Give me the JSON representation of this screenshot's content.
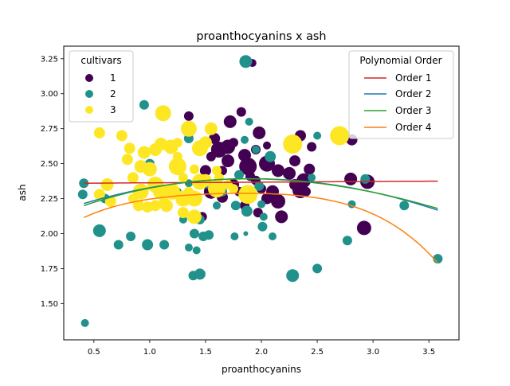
{
  "chart_data": {
    "type": "scatter",
    "title": "proanthocyanins x ash",
    "xlabel": "proanthocyanins",
    "ylabel": "ash",
    "xlim": [
      0.23,
      3.77
    ],
    "ylim": [
      1.24,
      3.34
    ],
    "xticks": [
      0.5,
      1.0,
      1.5,
      2.0,
      2.5,
      3.0,
      3.5
    ],
    "xtick_labels": [
      "0.5",
      "1.0",
      "1.5",
      "2.0",
      "2.5",
      "3.0",
      "3.5"
    ],
    "yticks": [
      1.5,
      1.75,
      2.0,
      2.25,
      2.5,
      2.75,
      3.0,
      3.25
    ],
    "ytick_labels": [
      "1.50",
      "1.75",
      "2.00",
      "2.25",
      "2.50",
      "2.75",
      "3.00",
      "3.25"
    ],
    "grid": false,
    "legends": [
      {
        "title": "cultivars",
        "placement": "top-left",
        "entries": [
          {
            "label": "1",
            "color": "#440154"
          },
          {
            "label": "2",
            "color": "#21918c"
          },
          {
            "label": "3",
            "color": "#fde725"
          }
        ]
      },
      {
        "title": "Polynomial Order",
        "placement": "top-right",
        "entries": [
          {
            "label": "Order 1",
            "color": "#d62728"
          },
          {
            "label": "Order 2",
            "color": "#1f77b4"
          },
          {
            "label": "Order 3",
            "color": "#2ca02c"
          },
          {
            "label": "Order 4",
            "color": "#ff7f0e"
          }
        ]
      }
    ],
    "series": [
      {
        "name": "1",
        "color": "#440154",
        "points": [
          [
            1.92,
            3.22,
            5
          ],
          [
            1.35,
            2.84,
            6
          ],
          [
            1.82,
            2.87,
            6
          ],
          [
            1.72,
            2.8,
            8
          ],
          [
            1.98,
            2.72,
            8
          ],
          [
            1.58,
            2.68,
            7
          ],
          [
            2.35,
            2.7,
            7
          ],
          [
            2.81,
            2.67,
            7
          ],
          [
            1.7,
            2.62,
            9
          ],
          [
            1.75,
            2.65,
            6
          ],
          [
            2.05,
            2.63,
            5
          ],
          [
            2.45,
            2.62,
            6
          ],
          [
            1.62,
            2.6,
            10
          ],
          [
            1.85,
            2.56,
            8
          ],
          [
            1.95,
            2.6,
            6
          ],
          [
            1.55,
            2.55,
            6
          ],
          [
            1.7,
            2.52,
            8
          ],
          [
            2.3,
            2.52,
            7
          ],
          [
            1.88,
            2.48,
            11
          ],
          [
            2.05,
            2.5,
            10
          ],
          [
            2.15,
            2.45,
            8
          ],
          [
            2.43,
            2.46,
            7
          ],
          [
            1.5,
            2.45,
            7
          ],
          [
            1.65,
            2.45,
            6
          ],
          [
            1.9,
            2.41,
            6
          ],
          [
            2.25,
            2.43,
            8
          ],
          [
            2.38,
            2.38,
            9
          ],
          [
            2.8,
            2.39,
            8
          ],
          [
            2.95,
            2.37,
            9
          ],
          [
            1.75,
            2.35,
            7
          ],
          [
            1.95,
            2.38,
            6
          ],
          [
            2.3,
            2.35,
            7
          ],
          [
            1.55,
            2.3,
            9
          ],
          [
            1.8,
            2.3,
            6
          ],
          [
            2.0,
            2.32,
            6
          ],
          [
            2.1,
            2.3,
            8
          ],
          [
            2.35,
            2.31,
            10
          ],
          [
            1.4,
            2.25,
            6
          ],
          [
            1.65,
            2.26,
            7
          ],
          [
            2.05,
            2.25,
            7
          ],
          [
            2.15,
            2.23,
            9
          ],
          [
            1.85,
            2.2,
            6
          ],
          [
            1.97,
            2.15,
            6
          ],
          [
            2.18,
            2.12,
            8
          ],
          [
            1.47,
            2.12,
            6
          ],
          [
            2.92,
            2.04,
            9
          ],
          [
            2.4,
            2.3,
            6
          ],
          [
            1.6,
            2.35,
            6
          ]
        ]
      },
      {
        "name": "2",
        "color": "#21918c",
        "points": [
          [
            1.86,
            3.23,
            8
          ],
          [
            1.89,
            2.8,
            5
          ],
          [
            0.95,
            2.92,
            6
          ],
          [
            1.35,
            2.68,
            6
          ],
          [
            1.85,
            2.67,
            5
          ],
          [
            2.5,
            2.7,
            5
          ],
          [
            1.95,
            2.6,
            5
          ],
          [
            2.08,
            2.55,
            7
          ],
          [
            1.0,
            2.5,
            6
          ],
          [
            1.25,
            2.48,
            6
          ],
          [
            1.8,
            2.42,
            6
          ],
          [
            2.45,
            2.4,
            5
          ],
          [
            2.93,
            2.39,
            6
          ],
          [
            0.41,
            2.36,
            6
          ],
          [
            1.08,
            2.35,
            5
          ],
          [
            1.35,
            2.36,
            5
          ],
          [
            1.52,
            2.35,
            5
          ],
          [
            1.98,
            2.34,
            6
          ],
          [
            0.4,
            2.28,
            6
          ],
          [
            1.25,
            2.3,
            5
          ],
          [
            1.65,
            2.3,
            6
          ],
          [
            0.6,
            2.25,
            6
          ],
          [
            1.42,
            2.25,
            6
          ],
          [
            1.77,
            2.2,
            6
          ],
          [
            2.0,
            2.21,
            5
          ],
          [
            2.81,
            2.21,
            5
          ],
          [
            3.28,
            2.2,
            6
          ],
          [
            1.6,
            2.2,
            5
          ],
          [
            1.87,
            2.16,
            7
          ],
          [
            2.02,
            2.12,
            5
          ],
          [
            1.3,
            2.1,
            5
          ],
          [
            1.45,
            2.1,
            6
          ],
          [
            0.55,
            2.02,
            8
          ],
          [
            0.83,
            1.98,
            6
          ],
          [
            1.4,
            2.0,
            6
          ],
          [
            1.48,
            1.98,
            6
          ],
          [
            1.53,
            1.99,
            6
          ],
          [
            1.76,
            1.98,
            5
          ],
          [
            1.86,
            2.0,
            3
          ],
          [
            2.01,
            2.05,
            6
          ],
          [
            2.1,
            1.98,
            5
          ],
          [
            0.98,
            1.92,
            7
          ],
          [
            1.13,
            1.92,
            6
          ],
          [
            0.72,
            1.92,
            6
          ],
          [
            1.35,
            1.9,
            5
          ],
          [
            1.42,
            1.88,
            5
          ],
          [
            2.77,
            1.95,
            6
          ],
          [
            1.39,
            1.7,
            6
          ],
          [
            1.45,
            1.71,
            7
          ],
          [
            2.28,
            1.7,
            8
          ],
          [
            2.5,
            1.75,
            6
          ],
          [
            3.58,
            1.82,
            6
          ],
          [
            0.42,
            1.36,
            5
          ]
        ]
      },
      {
        "name": "3",
        "color": "#fde725",
        "points": [
          [
            2.7,
            2.7,
            12
          ],
          [
            1.12,
            2.86,
            10
          ],
          [
            1.35,
            2.75,
            10
          ],
          [
            1.55,
            2.75,
            8
          ],
          [
            0.55,
            2.72,
            7
          ],
          [
            0.75,
            2.7,
            7
          ],
          [
            1.25,
            2.65,
            6
          ],
          [
            1.5,
            2.65,
            8
          ],
          [
            2.28,
            2.64,
            12
          ],
          [
            1.1,
            2.64,
            8
          ],
          [
            1.19,
            2.62,
            9
          ],
          [
            1.45,
            2.61,
            10
          ],
          [
            0.82,
            2.61,
            7
          ],
          [
            1.05,
            2.6,
            8
          ],
          [
            0.95,
            2.58,
            8
          ],
          [
            1.25,
            2.55,
            6
          ],
          [
            0.8,
            2.53,
            7
          ],
          [
            0.92,
            2.48,
            8
          ],
          [
            1.0,
            2.46,
            9
          ],
          [
            1.25,
            2.48,
            11
          ],
          [
            1.4,
            2.46,
            6
          ],
          [
            1.6,
            2.45,
            6
          ],
          [
            0.85,
            2.4,
            7
          ],
          [
            1.3,
            2.4,
            6
          ],
          [
            1.5,
            2.38,
            8
          ],
          [
            1.62,
            2.4,
            6
          ],
          [
            0.62,
            2.35,
            8
          ],
          [
            1.05,
            2.35,
            10
          ],
          [
            1.45,
            2.37,
            10
          ],
          [
            1.6,
            2.32,
            11
          ],
          [
            1.7,
            2.35,
            6
          ],
          [
            0.92,
            2.3,
            10
          ],
          [
            1.1,
            2.3,
            10
          ],
          [
            1.2,
            2.3,
            10
          ],
          [
            1.35,
            2.3,
            6
          ],
          [
            1.75,
            2.32,
            6
          ],
          [
            0.55,
            2.28,
            7
          ],
          [
            0.85,
            2.25,
            6
          ],
          [
            1.3,
            2.25,
            10
          ],
          [
            1.4,
            2.25,
            10
          ],
          [
            1.88,
            2.28,
            12
          ],
          [
            0.65,
            2.23,
            7
          ],
          [
            1.13,
            2.22,
            7
          ],
          [
            1.05,
            2.2,
            7
          ],
          [
            1.15,
            2.2,
            8
          ],
          [
            0.9,
            2.2,
            7
          ],
          [
            0.98,
            2.19,
            7
          ],
          [
            1.3,
            2.15,
            7
          ],
          [
            1.4,
            2.12,
            9
          ]
        ]
      }
    ],
    "fits": [
      {
        "name": "Order 1",
        "color": "#d62728",
        "coef": [
          2.3581,
          0.0047
        ]
      },
      {
        "name": "Order 2",
        "color": "#1f77b4",
        "coef": [
          2.1035,
          0.304,
          -0.08
        ]
      },
      {
        "name": "Order 3",
        "color": "#2ca02c",
        "coef": [
          2.07,
          0.3601,
          -0.11,
          0.005
        ]
      },
      {
        "name": "Order 4",
        "color": "#ff7f0e",
        "coef": [
          1.9045,
          0.689,
          -0.499,
          0.178,
          -0.0265
        ]
      }
    ],
    "fit_xrange": [
      0.41,
      3.58
    ]
  }
}
